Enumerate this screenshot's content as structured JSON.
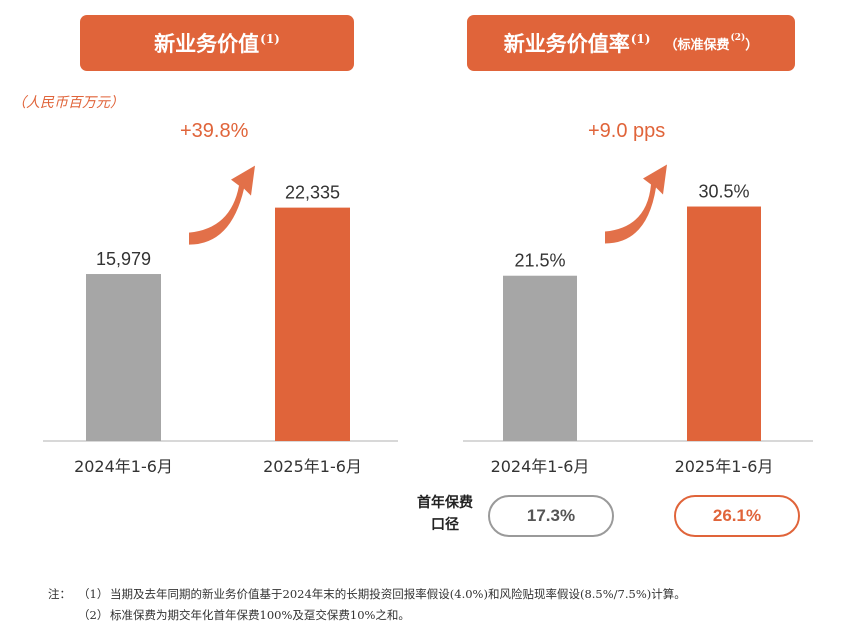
{
  "left_title": {
    "text": "新业务价值",
    "sup": "(1)"
  },
  "right_title": {
    "text": "新业务价值率",
    "sup": "(1)",
    "sub": "（标准保费",
    "sub_sup": "(2)",
    "sub_close": "）"
  },
  "unit": "（人民币百万元）",
  "colors": {
    "accent": "#e0643a",
    "grey": "#a6a6a6",
    "axis": "#cccccc"
  },
  "chart_data": [
    {
      "type": "bar",
      "title": "新业务价值",
      "categories": [
        "2024年1-6月",
        "2025年1-6月"
      ],
      "values": [
        15979,
        22335
      ],
      "value_labels": [
        "15,979",
        "22,335"
      ],
      "bar_colors": [
        "#a6a6a6",
        "#e0643a"
      ],
      "growth_label": "+39.8%",
      "ylim": [
        0,
        24500
      ]
    },
    {
      "type": "bar",
      "title": "新业务价值率（标准保费）",
      "categories": [
        "2024年1-6月",
        "2025年1-6月"
      ],
      "values": [
        21.5,
        30.5
      ],
      "value_labels": [
        "21.5%",
        "30.5%"
      ],
      "bar_colors": [
        "#a6a6a6",
        "#e0643a"
      ],
      "growth_label": "+9.0 pps",
      "ylim": [
        0,
        33.3
      ]
    }
  ],
  "first_year_premium": {
    "label_line1": "首年保费",
    "label_line2": "口径",
    "values": [
      "17.3%",
      "26.1%"
    ]
  },
  "footnotes": {
    "tag": "注：",
    "notes": [
      {
        "num": "（1）",
        "text": "当期及去年同期的新业务价值基于2024年末的长期投资回报率假设(4.0%)和风险贴现率假设(8.5%/7.5%)计算。"
      },
      {
        "num": "（2）",
        "text": "标准保费为期交年化首年保费100%及趸交保费10%之和。"
      }
    ]
  }
}
